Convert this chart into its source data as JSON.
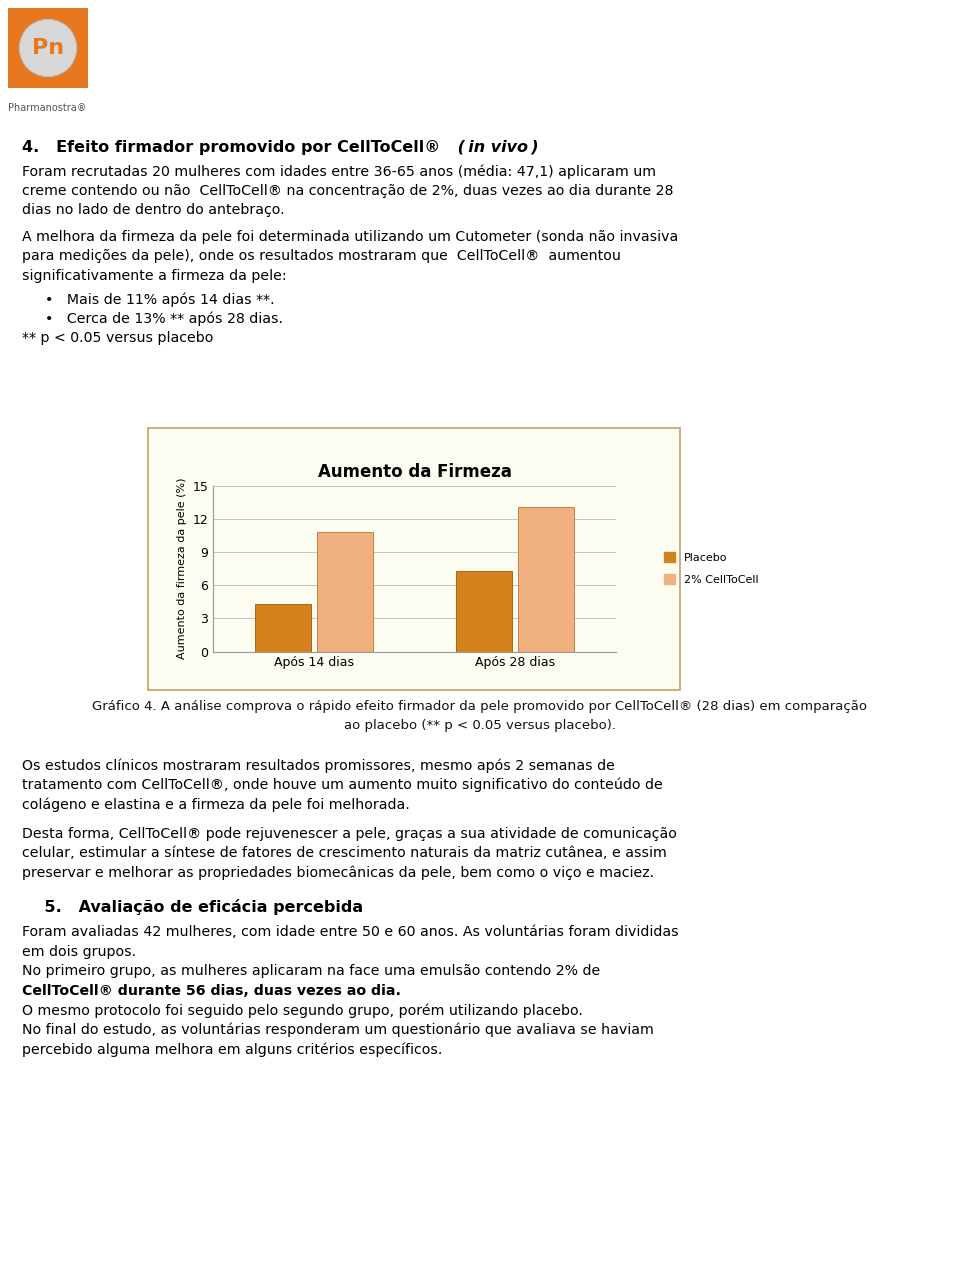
{
  "title": "Aumento da Firmeza",
  "ylabel": "Aumento da firmeza da pele (%)",
  "groups": [
    "Após 14 dias",
    "Após 28 dias"
  ],
  "series": [
    "Placebo",
    "2% CellToCell"
  ],
  "values": [
    [
      4.3,
      10.8
    ],
    [
      7.3,
      13.1
    ]
  ],
  "bar_colors_placebo": "#D4821E",
  "bar_colors_celltocell": "#F0B080",
  "bar_edge_placebo": "#B06010",
  "bar_edge_celltocell": "#C88040",
  "ylim": [
    0,
    15
  ],
  "yticks": [
    0,
    3,
    6,
    9,
    12,
    15
  ],
  "chart_bg": "#FDFCF0",
  "chart_border": "#C8A060",
  "page_bg": "#FFFFFF",
  "logo_bg": "#E87820",
  "logo_oval": "#D8D8D8",
  "logo_text_color": "#E87820",
  "text_color": "#000000",
  "caption_color": "#222222"
}
